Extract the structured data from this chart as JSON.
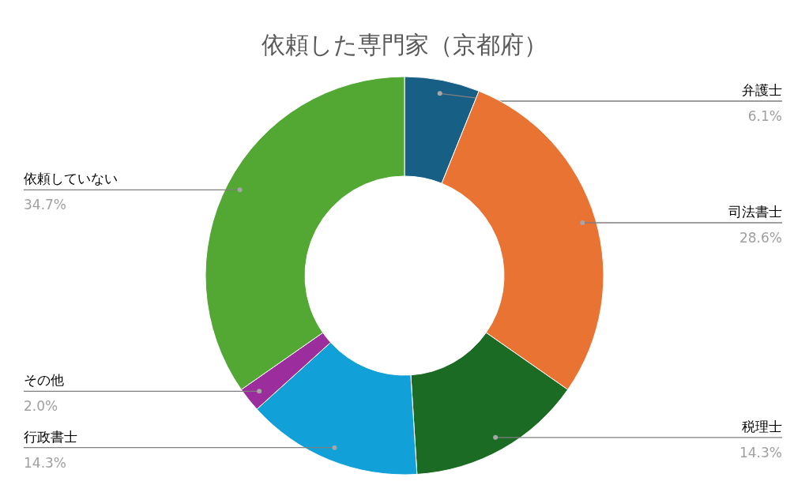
{
  "chart_data": {
    "type": "donut",
    "title": "依頼した専門家（京都府）",
    "categories": [
      "弁護士",
      "司法書士",
      "税理士",
      "行政書士",
      "その他",
      "依頼していない"
    ],
    "values": [
      6.1,
      28.6,
      14.3,
      14.3,
      2.0,
      34.7
    ],
    "colors": [
      "#175f84",
      "#e87333",
      "#1b6b25",
      "#11a0d7",
      "#9b2e9c",
      "#52a833"
    ],
    "value_labels": [
      "6.1%",
      "28.6%",
      "14.3%",
      "14.3%",
      "2.0%",
      "34.7%"
    ]
  }
}
